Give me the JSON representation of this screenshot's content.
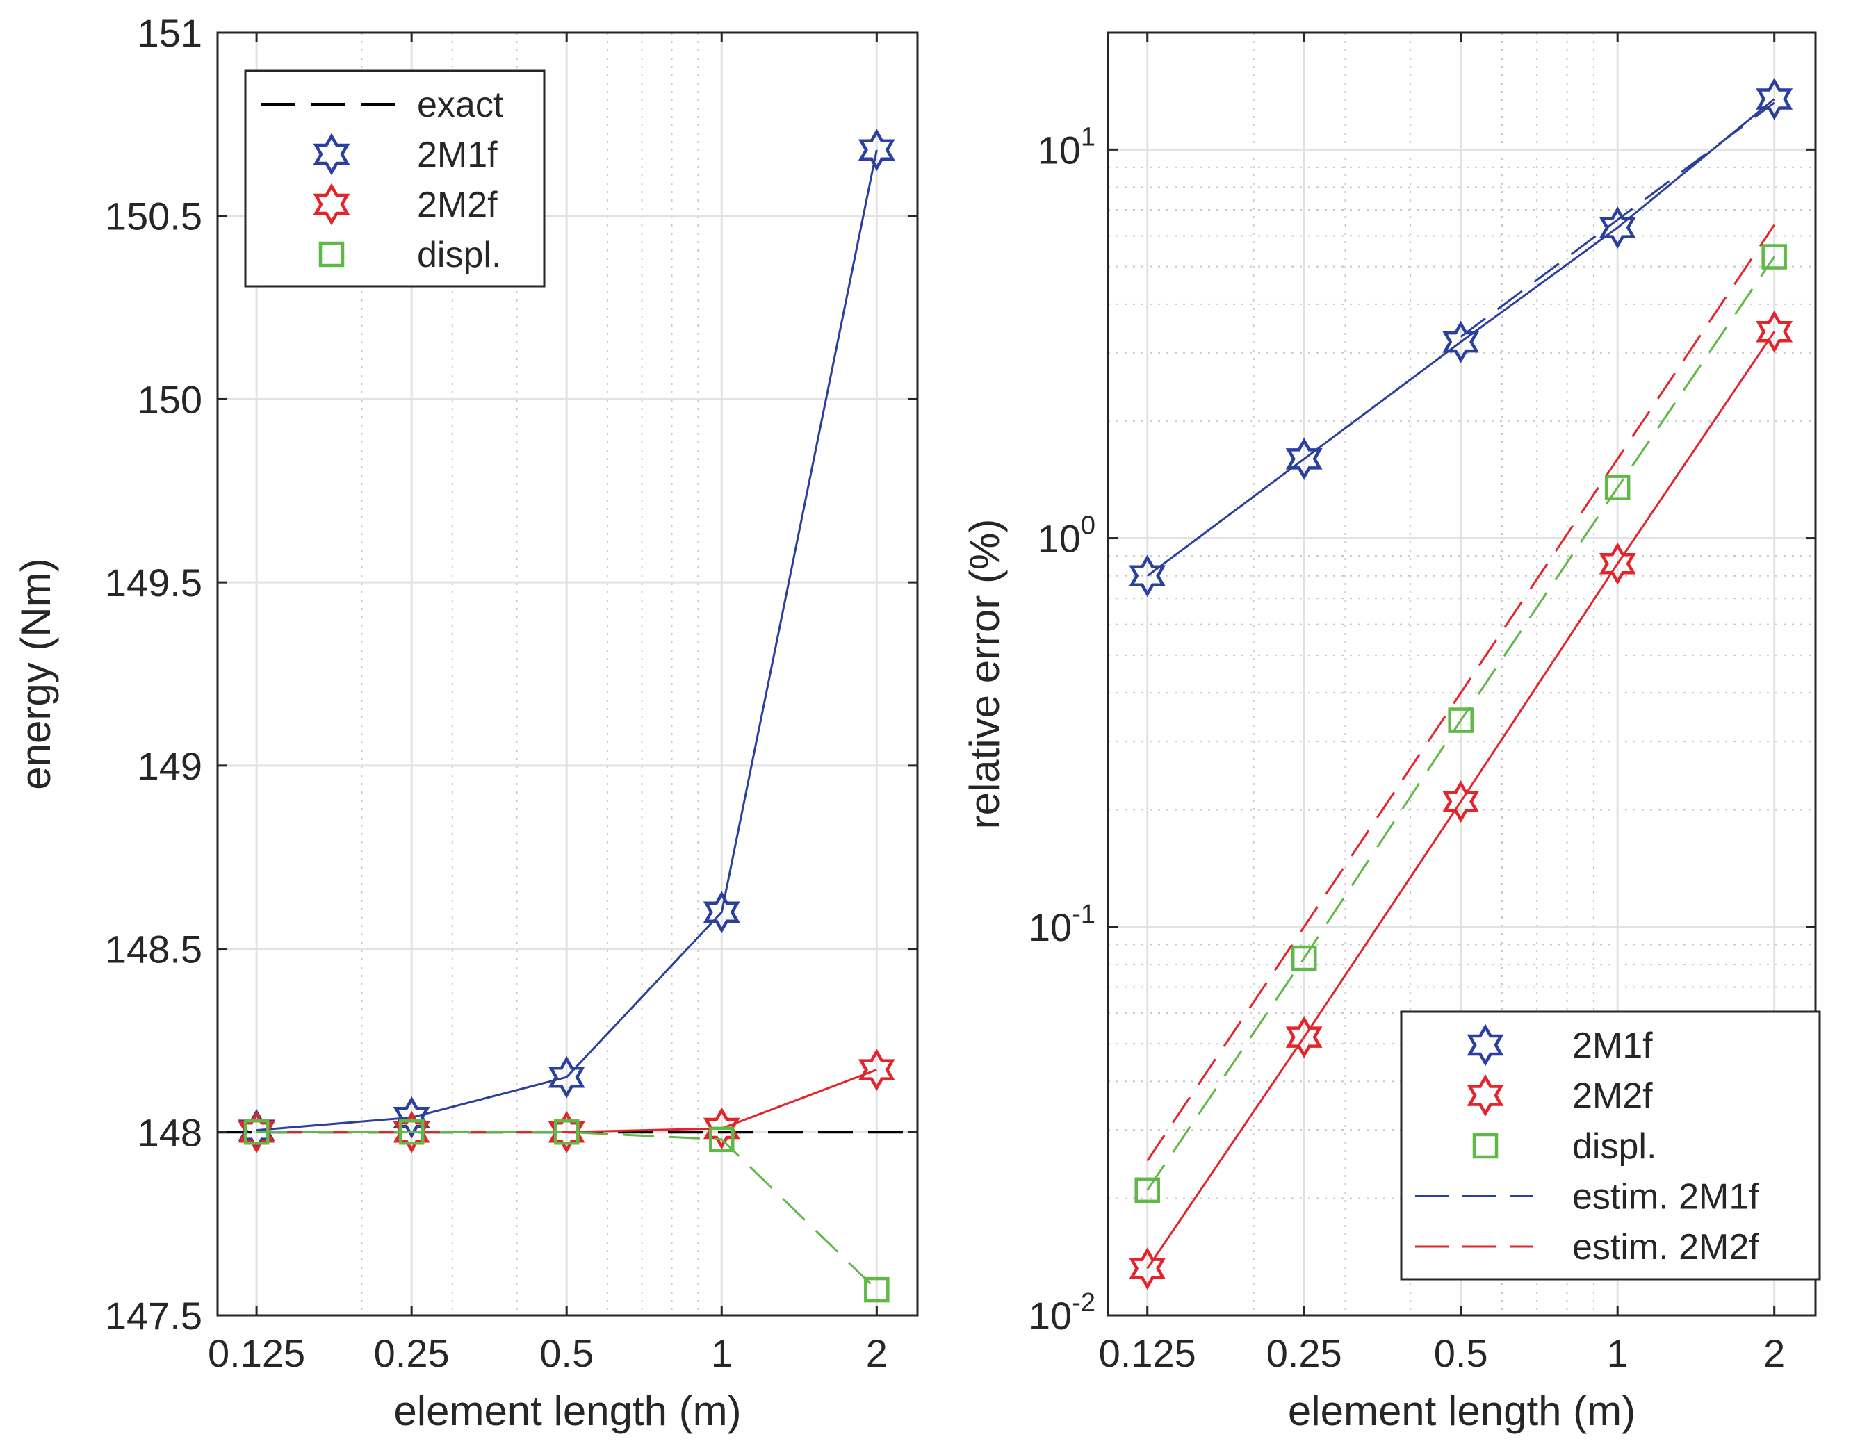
{
  "chart_data": [
    {
      "type": "line",
      "xscale": "log",
      "yscale": "linear",
      "xlabel": "element length (m)",
      "ylabel": "energy (Nm)",
      "xlim": [
        0.105,
        2.4
      ],
      "ylim": [
        147.5,
        151
      ],
      "xticks": [
        0.125,
        0.25,
        0.5,
        1,
        2
      ],
      "xtick_labels": [
        "0.125",
        "0.25",
        "0.5",
        "1",
        "2"
      ],
      "yticks": [
        147.5,
        148,
        148.5,
        149,
        149.5,
        150,
        150.5,
        151
      ],
      "ytick_labels": [
        "147.5",
        "148",
        "148.5",
        "149",
        "149.5",
        "150",
        "150.5",
        "151"
      ],
      "grid": true,
      "legend_position": "top-left",
      "x": [
        0.125,
        0.25,
        0.5,
        1,
        2
      ],
      "series": [
        {
          "name": "exact",
          "color": "#000000",
          "style": "dashed",
          "marker": "none",
          "x": [
            0.105,
            2.4
          ],
          "values": [
            148,
            148
          ]
        },
        {
          "name": "2M1f",
          "color": "#2b3f9e",
          "style": "solid",
          "marker": "hexagram",
          "values": [
            148.005,
            148.04,
            148.15,
            148.6,
            150.68
          ]
        },
        {
          "name": "2M2f",
          "color": "#e3242b",
          "style": "solid",
          "marker": "hexagram",
          "values": [
            148.0,
            148.0,
            148.0,
            148.01,
            148.17
          ]
        },
        {
          "name": "displ.",
          "color": "#5fb946",
          "style": "dashed",
          "marker": "square",
          "values": [
            148.0,
            148.0,
            148.0,
            147.98,
            147.57
          ]
        }
      ]
    },
    {
      "type": "line",
      "xscale": "log",
      "yscale": "log",
      "xlabel": "element length (m)",
      "ylabel": "relative error (%)",
      "xlim": [
        0.105,
        2.4
      ],
      "ylim": [
        0.01,
        20
      ],
      "xticks": [
        0.125,
        0.25,
        0.5,
        1,
        2
      ],
      "xtick_labels": [
        "0.125",
        "0.25",
        "0.5",
        "1",
        "2"
      ],
      "yticks": [
        0.01,
        0.1,
        1,
        10
      ],
      "ytick_base": "10",
      "ytick_exponents": [
        "-2",
        "-1",
        "0",
        "1"
      ],
      "grid": true,
      "legend_position": "bottom-right",
      "x": [
        0.125,
        0.25,
        0.5,
        1,
        2
      ],
      "series": [
        {
          "name": "2M1f",
          "color": "#2b3f9e",
          "style": "solid",
          "marker": "hexagram",
          "values": [
            0.8,
            1.6,
            3.2,
            6.3,
            13.5
          ]
        },
        {
          "name": "2M2f",
          "color": "#e3242b",
          "style": "solid",
          "marker": "hexagram",
          "values": [
            0.0132,
            0.052,
            0.21,
            0.86,
            3.4
          ]
        },
        {
          "name": "displ.",
          "color": "#5fb946",
          "style": "dashed",
          "marker": "square",
          "values": [
            0.021,
            0.083,
            0.34,
            1.35,
            5.3
          ]
        },
        {
          "name": "estim. 2M1f",
          "color": "#2b3f9e",
          "style": "dashed",
          "marker": "none",
          "x": [
            0.5,
            1,
            2
          ],
          "values": [
            3.3,
            6.6,
            13.2
          ]
        },
        {
          "name": "estim. 2M2f",
          "color": "#e3242b",
          "style": "dashed",
          "marker": "none",
          "x": [
            0.125,
            0.25,
            0.5,
            1,
            2
          ],
          "values": [
            0.025,
            0.1,
            0.4,
            1.6,
            6.4
          ]
        }
      ]
    }
  ]
}
